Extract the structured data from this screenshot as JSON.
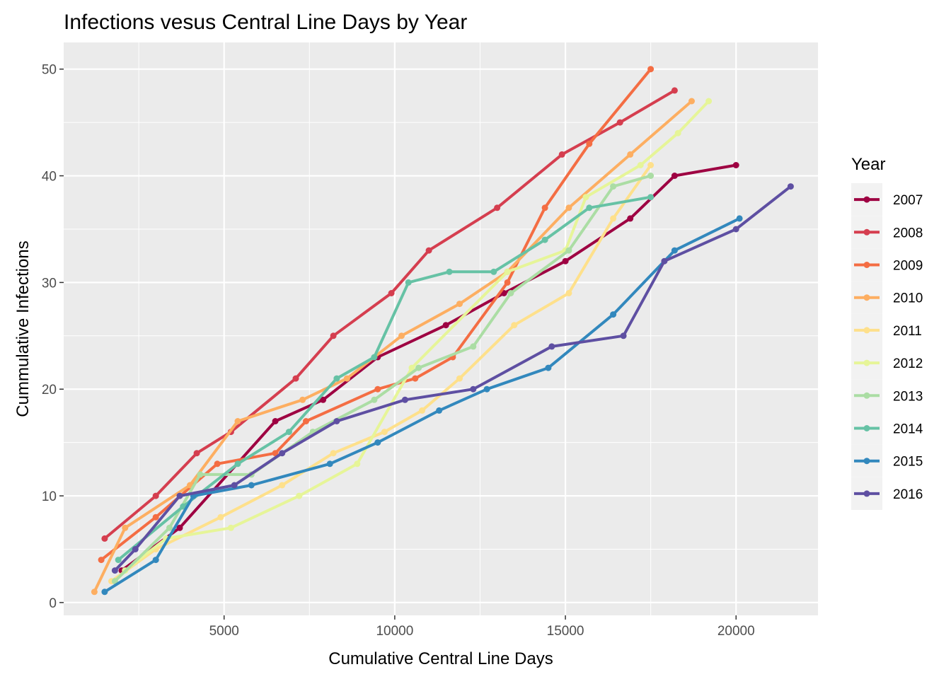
{
  "chart_data": {
    "type": "line",
    "title": "Infections vesus Central Line Days by Year",
    "xlabel": "Cumulative Central Line Days",
    "ylabel": "Cummulative Infections",
    "xlim": [
      300,
      22400
    ],
    "ylim": [
      -1.2,
      52.5
    ],
    "x_ticks": [
      5000,
      10000,
      15000,
      20000
    ],
    "x_tick_labels": [
      "5000",
      "10000",
      "15000",
      "20000"
    ],
    "y_ticks": [
      0,
      10,
      20,
      30,
      40,
      50
    ],
    "y_tick_labels": [
      "0",
      "10",
      "20",
      "30",
      "40",
      "50"
    ],
    "grid": true,
    "legend": {
      "title": "Year",
      "position": "right"
    },
    "series": [
      {
        "name": "2007",
        "color": "#9E0142",
        "points": [
          [
            2000,
            3
          ],
          [
            3700,
            7
          ],
          [
            6500,
            17
          ],
          [
            7900,
            19
          ],
          [
            9500,
            23
          ],
          [
            11500,
            26
          ],
          [
            13200,
            29
          ],
          [
            15000,
            32
          ],
          [
            16900,
            36
          ],
          [
            18200,
            40
          ],
          [
            20000,
            41
          ]
        ]
      },
      {
        "name": "2008",
        "color": "#D53E4F",
        "points": [
          [
            1500,
            6
          ],
          [
            3000,
            10
          ],
          [
            4200,
            14
          ],
          [
            5200,
            16
          ],
          [
            7100,
            21
          ],
          [
            8200,
            25
          ],
          [
            9900,
            29
          ],
          [
            11000,
            33
          ],
          [
            13000,
            37
          ],
          [
            14900,
            42
          ],
          [
            16600,
            45
          ],
          [
            18200,
            48
          ]
        ]
      },
      {
        "name": "2009",
        "color": "#F46D43",
        "points": [
          [
            1400,
            4
          ],
          [
            3000,
            8
          ],
          [
            4800,
            13
          ],
          [
            6500,
            14
          ],
          [
            7400,
            17
          ],
          [
            9500,
            20
          ],
          [
            10600,
            21
          ],
          [
            11700,
            23
          ],
          [
            13300,
            30
          ],
          [
            14400,
            37
          ],
          [
            15700,
            43
          ],
          [
            17500,
            50
          ]
        ]
      },
      {
        "name": "2010",
        "color": "#FDAE61",
        "points": [
          [
            1200,
            1
          ],
          [
            2100,
            7
          ],
          [
            4000,
            11
          ],
          [
            5400,
            17
          ],
          [
            7300,
            19
          ],
          [
            8600,
            21
          ],
          [
            10200,
            25
          ],
          [
            11900,
            28
          ],
          [
            13300,
            31
          ],
          [
            15100,
            37
          ],
          [
            16900,
            42
          ],
          [
            18700,
            47
          ]
        ]
      },
      {
        "name": "2011",
        "color": "#FEE08B",
        "points": [
          [
            1700,
            2
          ],
          [
            3000,
            5
          ],
          [
            4900,
            8
          ],
          [
            6700,
            11
          ],
          [
            8200,
            14
          ],
          [
            9700,
            16
          ],
          [
            10800,
            18
          ],
          [
            11900,
            21
          ],
          [
            13500,
            26
          ],
          [
            15100,
            29
          ],
          [
            16400,
            36
          ],
          [
            17500,
            41
          ]
        ]
      },
      {
        "name": "2012",
        "color": "#E6F598",
        "points": [
          [
            2100,
            3
          ],
          [
            3300,
            6
          ],
          [
            5200,
            7
          ],
          [
            7200,
            10
          ],
          [
            8900,
            13
          ],
          [
            10500,
            22
          ],
          [
            13300,
            31
          ],
          [
            15000,
            33
          ],
          [
            15600,
            38
          ],
          [
            17200,
            41
          ],
          [
            18300,
            44
          ],
          [
            19200,
            47
          ]
        ]
      },
      {
        "name": "2013",
        "color": "#ABDDA4",
        "points": [
          [
            1800,
            2
          ],
          [
            3400,
            7
          ],
          [
            4300,
            12
          ],
          [
            5800,
            12
          ],
          [
            7600,
            16
          ],
          [
            9400,
            19
          ],
          [
            10700,
            22
          ],
          [
            12300,
            24
          ],
          [
            13400,
            29
          ],
          [
            15100,
            33
          ],
          [
            16400,
            39
          ],
          [
            17500,
            40
          ]
        ]
      },
      {
        "name": "2014",
        "color": "#66C2A5",
        "points": [
          [
            1900,
            4
          ],
          [
            3800,
            9
          ],
          [
            5400,
            13
          ],
          [
            6900,
            16
          ],
          [
            8300,
            21
          ],
          [
            9400,
            23
          ],
          [
            10400,
            30
          ],
          [
            11600,
            31
          ],
          [
            12900,
            31
          ],
          [
            14400,
            34
          ],
          [
            15700,
            37
          ],
          [
            17500,
            38
          ]
        ]
      },
      {
        "name": "2015",
        "color": "#3288BD",
        "points": [
          [
            1500,
            1
          ],
          [
            3000,
            4
          ],
          [
            4100,
            10
          ],
          [
            5800,
            11
          ],
          [
            8100,
            13
          ],
          [
            9500,
            15
          ],
          [
            11300,
            18
          ],
          [
            12700,
            20
          ],
          [
            14500,
            22
          ],
          [
            16400,
            27
          ],
          [
            18200,
            33
          ],
          [
            20100,
            36
          ]
        ]
      },
      {
        "name": "2016",
        "color": "#5E4FA2",
        "points": [
          [
            1800,
            3
          ],
          [
            2400,
            5
          ],
          [
            3700,
            10
          ],
          [
            5300,
            11
          ],
          [
            6700,
            14
          ],
          [
            8300,
            17
          ],
          [
            10300,
            19
          ],
          [
            12300,
            20
          ],
          [
            14600,
            24
          ],
          [
            16700,
            25
          ],
          [
            17900,
            32
          ],
          [
            20000,
            35
          ],
          [
            21600,
            39
          ]
        ]
      }
    ]
  }
}
